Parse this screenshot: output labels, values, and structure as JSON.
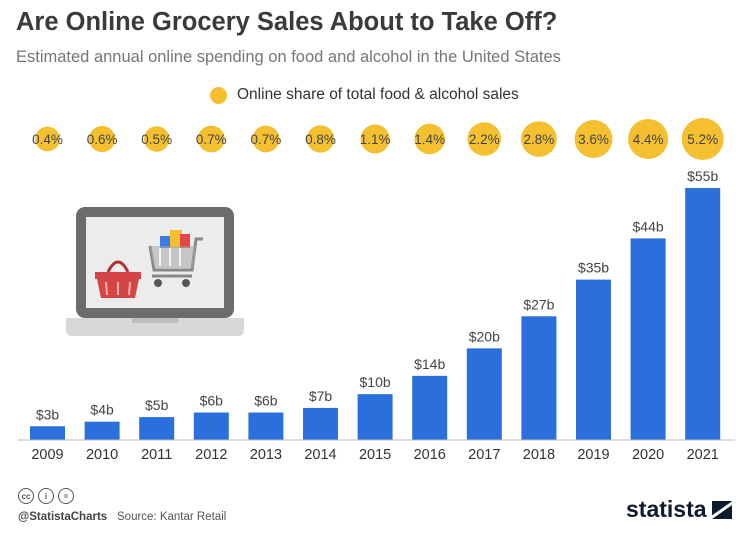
{
  "title": "Are Online Grocery Sales About to Take Off?",
  "subtitle": "Estimated annual online spending on food and alcohol in the United States",
  "legend": {
    "label": "Online share of total food & alcohol sales"
  },
  "colors": {
    "bar": "#2a6fdb",
    "bubble": "#f5c02f",
    "axis": "#bbbbbb"
  },
  "footer": {
    "handle": "@StatistaCharts",
    "source": "Source: Kantar Retail",
    "brand": "statista",
    "license_icons": [
      "cc-icon",
      "attribution-icon",
      "no-derivatives-icon"
    ]
  },
  "chart_data": {
    "type": "bar",
    "categories": [
      "2009",
      "2010",
      "2011",
      "2012",
      "2013",
      "2014",
      "2015",
      "2016",
      "2017",
      "2018",
      "2019",
      "2020",
      "2021"
    ],
    "series": [
      {
        "values": [
          3,
          4,
          5,
          6,
          6,
          7,
          10,
          14,
          20,
          27,
          35,
          44,
          55
        ],
        "value_labels": [
          "$3b",
          "$4b",
          "$5b",
          "$6b",
          "$6b",
          "$7b",
          "$10b",
          "$14b",
          "$20b",
          "$27b",
          "$35b",
          "$44b",
          "$55b"
        ]
      },
      {
        "name": "Online share of total food & alcohol sales",
        "type": "bubble",
        "values": [
          0.4,
          0.6,
          0.5,
          0.7,
          0.7,
          0.8,
          1.1,
          1.4,
          2.2,
          2.8,
          3.6,
          4.4,
          5.2
        ],
        "value_labels": [
          "0.4%",
          "0.6%",
          "0.5%",
          "0.7%",
          "0.7%",
          "0.8%",
          "1.1%",
          "1.4%",
          "2.2%",
          "2.8%",
          "3.6%",
          "4.4%",
          "5.2%"
        ]
      }
    ],
    "ylim": [
      0,
      55
    ],
    "grid": false,
    "legend_position": "top-center",
    "illustration": "laptop-with-shopping-basket-and-cart-icon"
  }
}
